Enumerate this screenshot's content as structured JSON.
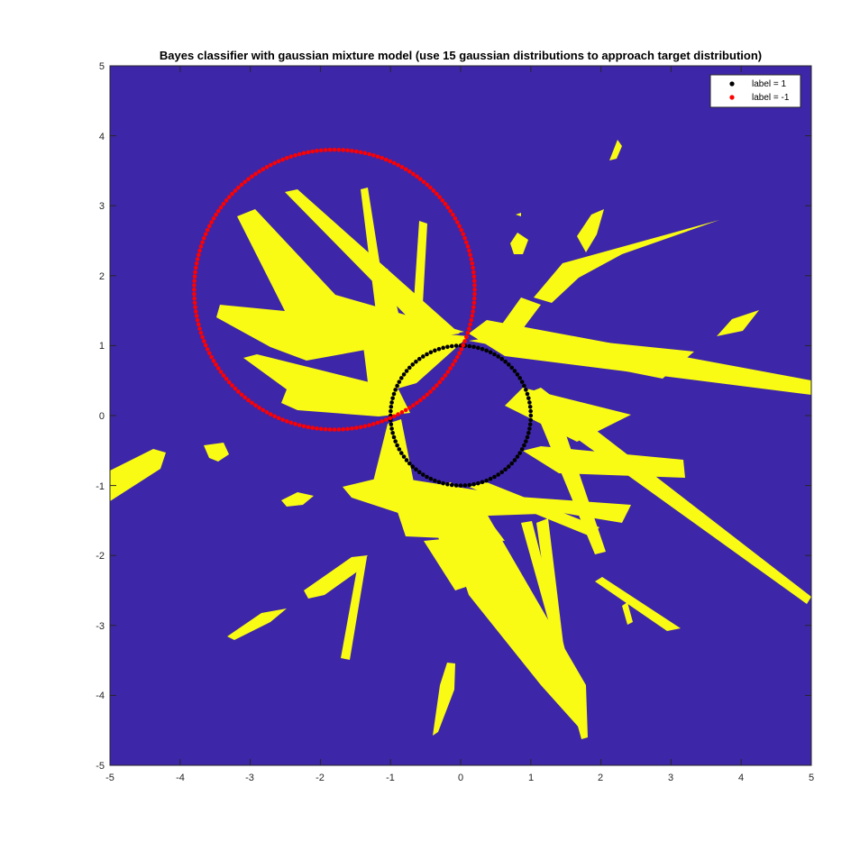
{
  "chart_data": {
    "type": "scatter",
    "title": "Bayes classifier with gaussian mixture model (use 15 gaussian distributions to approach target distribution)",
    "xlabel": "",
    "ylabel": "",
    "xlim": [
      -5,
      5
    ],
    "ylim": [
      -5,
      5
    ],
    "x_ticks": [
      "-5",
      "-4",
      "-3",
      "-2",
      "-1",
      "0",
      "1",
      "2",
      "3",
      "4",
      "5"
    ],
    "y_ticks": [
      "5",
      "4",
      "3",
      "2",
      "1",
      "0",
      "-1",
      "-2",
      "-3",
      "-4",
      "-5"
    ],
    "grid": false,
    "legend_position": "top-right",
    "background_region": {
      "label": "class -1 region",
      "color": "#3E26A8"
    },
    "decision_region": {
      "label": "class 1 region",
      "color": "#F9FB15"
    },
    "series": [
      {
        "name": "label = 1",
        "color": "#000000",
        "shape": "circle",
        "center": [
          0,
          0
        ],
        "radius": 1.0,
        "count": 100
      },
      {
        "name": "label = -1",
        "color": "#FF0000",
        "shape": "circle",
        "center": [
          -1.8,
          1.8
        ],
        "radius": 2.0,
        "count": 200
      }
    ]
  }
}
